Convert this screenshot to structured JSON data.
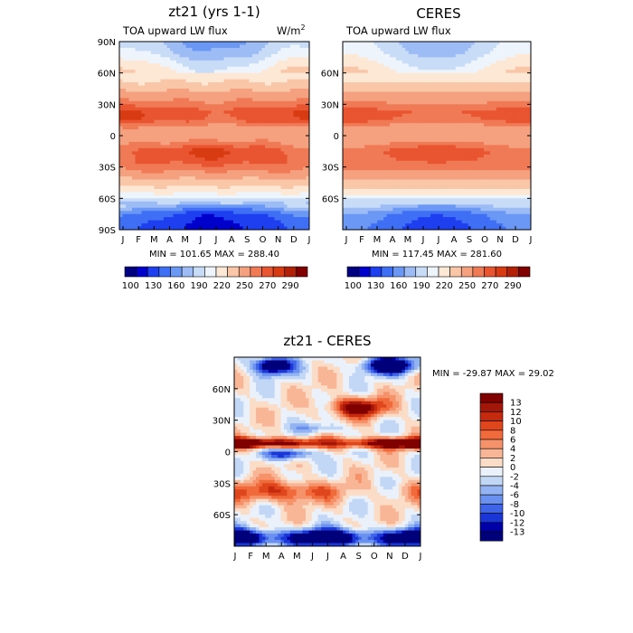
{
  "chart_data": [
    {
      "type": "heatmap",
      "title": "zt21 (yrs 1-1)",
      "subtitle": "TOA upward LW flux",
      "units": "W/m",
      "units_sup": "2",
      "x_ticks": [
        "J",
        "F",
        "M",
        "A",
        "M",
        "J",
        "J",
        "A",
        "S",
        "O",
        "N",
        "D",
        "J"
      ],
      "y_ticks": [
        "90N",
        "60N",
        "30N",
        "0",
        "30S",
        "60S",
        "90S"
      ],
      "stats": "MIN = 101.65  MAX = 288.40",
      "colorbar_labels": [
        "100",
        "130",
        "160",
        "190",
        "220",
        "250",
        "270",
        "290"
      ],
      "colormap": [
        "#000080",
        "#0000cd",
        "#1e3ff0",
        "#3f6ff5",
        "#6b98f5",
        "#9dbcf5",
        "#c8dcf7",
        "#eef4fb",
        "#fde8d6",
        "#f9c6a8",
        "#f5a07f",
        "#ef7a55",
        "#e85530",
        "#d83a12",
        "#b32008",
        "#800000"
      ],
      "lat_profile": [
        {
          "lat": -90,
          "v": 120
        },
        {
          "lat": -85,
          "v": 122
        },
        {
          "lat": -75,
          "v": 132
        },
        {
          "lat": -65,
          "v": 172
        },
        {
          "lat": -55,
          "v": 205
        },
        {
          "lat": -45,
          "v": 228
        },
        {
          "lat": -35,
          "v": 248
        },
        {
          "lat": -25,
          "v": 262
        },
        {
          "lat": -15,
          "v": 266
        },
        {
          "lat": -5,
          "v": 248
        },
        {
          "lat": 5,
          "v": 240
        },
        {
          "lat": 15,
          "v": 264
        },
        {
          "lat": 22,
          "v": 268
        },
        {
          "lat": 30,
          "v": 255
        },
        {
          "lat": 40,
          "v": 240
        },
        {
          "lat": 50,
          "v": 222
        },
        {
          "lat": 60,
          "v": 210
        },
        {
          "lat": 70,
          "v": 195
        },
        {
          "lat": 80,
          "v": 178
        },
        {
          "lat": 90,
          "v": 170
        }
      ]
    },
    {
      "type": "heatmap",
      "title": "CERES",
      "subtitle": "TOA upward LW flux",
      "x_ticks": [
        "J",
        "F",
        "M",
        "A",
        "M",
        "J",
        "J",
        "A",
        "S",
        "O",
        "N",
        "D",
        "J"
      ],
      "y_ticks": [
        "60N",
        "30N",
        "0",
        "30S",
        "60S"
      ],
      "stats": "MIN = 117.45  MAX = 281.60",
      "colorbar_labels": [
        "100",
        "130",
        "160",
        "190",
        "220",
        "250",
        "270",
        "290"
      ],
      "lat_profile": [
        {
          "lat": -90,
          "v": 135
        },
        {
          "lat": -85,
          "v": 137
        },
        {
          "lat": -75,
          "v": 145
        },
        {
          "lat": -65,
          "v": 180
        },
        {
          "lat": -55,
          "v": 208
        },
        {
          "lat": -45,
          "v": 230
        },
        {
          "lat": -35,
          "v": 248
        },
        {
          "lat": -25,
          "v": 258
        },
        {
          "lat": -15,
          "v": 262
        },
        {
          "lat": -5,
          "v": 246
        },
        {
          "lat": 5,
          "v": 238
        },
        {
          "lat": 15,
          "v": 260
        },
        {
          "lat": 22,
          "v": 264
        },
        {
          "lat": 30,
          "v": 252
        },
        {
          "lat": 40,
          "v": 238
        },
        {
          "lat": 50,
          "v": 222
        },
        {
          "lat": 60,
          "v": 210
        },
        {
          "lat": 70,
          "v": 198
        },
        {
          "lat": 80,
          "v": 185
        },
        {
          "lat": 90,
          "v": 180
        }
      ]
    },
    {
      "type": "heatmap",
      "title": "zt21 - CERES",
      "x_ticks": [
        "J",
        "F",
        "M",
        "A",
        "M",
        "J",
        "J",
        "A",
        "S",
        "O",
        "N",
        "D",
        "J"
      ],
      "y_ticks": [
        "60N",
        "30N",
        "0",
        "30S",
        "60S"
      ],
      "stats": "MIN = -29.87 MAX =  29.02",
      "legend_labels": [
        "13",
        "12",
        "10",
        "8",
        "6",
        "4",
        "2",
        "0",
        "-2",
        "-4",
        "-6",
        "-8",
        "-10",
        "-12",
        "-13"
      ],
      "legend_colors": [
        "#800000",
        "#a3160a",
        "#c62a0e",
        "#e0461c",
        "#f06a3c",
        "#f5926a",
        "#f8b697",
        "#fbdcc6",
        "#eaf1fb",
        "#c2d6f5",
        "#93b3f2",
        "#6a90f0",
        "#3f64e8",
        "#1b36d6",
        "#0000a8",
        "#00007a"
      ],
      "colormap": [
        "#00007a",
        "#0000a8",
        "#1b36d6",
        "#3f64e8",
        "#6a90f0",
        "#93b3f2",
        "#c2d6f5",
        "#eaf1fb",
        "#fbdcc6",
        "#f8b697",
        "#f5926a",
        "#f06a3c",
        "#e0461c",
        "#c62a0e",
        "#a3160a",
        "#800000"
      ]
    }
  ]
}
